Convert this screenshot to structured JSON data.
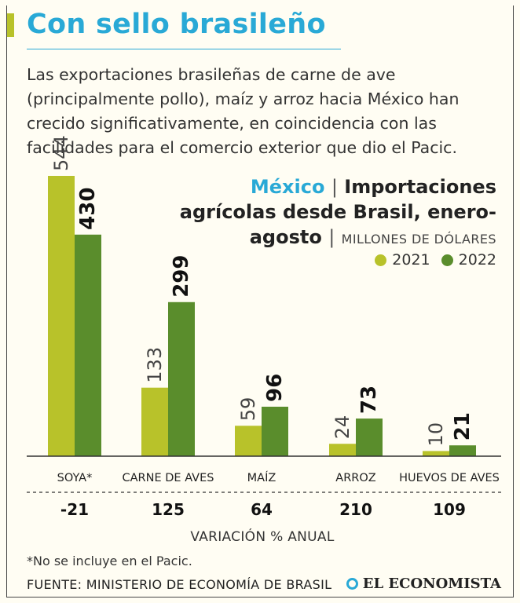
{
  "headline": "Con sello brasileño",
  "intro": "Las exportaciones brasileñas de carne de ave (principalmente pollo), maíz y arroz hacia México han crecido significativamente, en coincidencia con las facilidades para el comercio exterior que dio el Pacic.",
  "chart_heading": {
    "country": "México",
    "separator": "|",
    "title_part1": "Importaciones",
    "title_part2": "agrícolas desde Brasil, enero-",
    "title_part3": "agosto",
    "units": "MILLONES DE DÓLARES"
  },
  "legend": [
    {
      "label": "2021",
      "color": "#b8c22a"
    },
    {
      "label": "2022",
      "color": "#5a8d2c"
    }
  ],
  "chart_data": {
    "type": "bar",
    "title": "México | Importaciones agrícolas desde Brasil, enero-agosto",
    "ylabel": "MILLONES DE DÓLARES",
    "xlabel": "",
    "categories": [
      "SOYA*",
      "CARNE DE AVES",
      "MAÍZ",
      "ARROZ",
      "HUEVOS DE AVES"
    ],
    "series": [
      {
        "name": "2021",
        "color": "#b8c22a",
        "values": [
          544,
          133,
          59,
          24,
          10
        ]
      },
      {
        "name": "2022",
        "color": "#5a8d2c",
        "values": [
          430,
          299,
          96,
          73,
          21
        ]
      }
    ],
    "ylim": [
      0,
      544
    ],
    "grid": false,
    "legend_position": "top-right",
    "variation_label": "VARIACIÓN % ANUAL",
    "variation": [
      "-21",
      "125",
      "64",
      "210",
      "109"
    ]
  },
  "footnote": "*No se incluye en el Pacic.",
  "source": "FUENTE: MINISTERIO DE ECONOMÍA DE BRASIL",
  "brand": "EL ECONOMISTA"
}
